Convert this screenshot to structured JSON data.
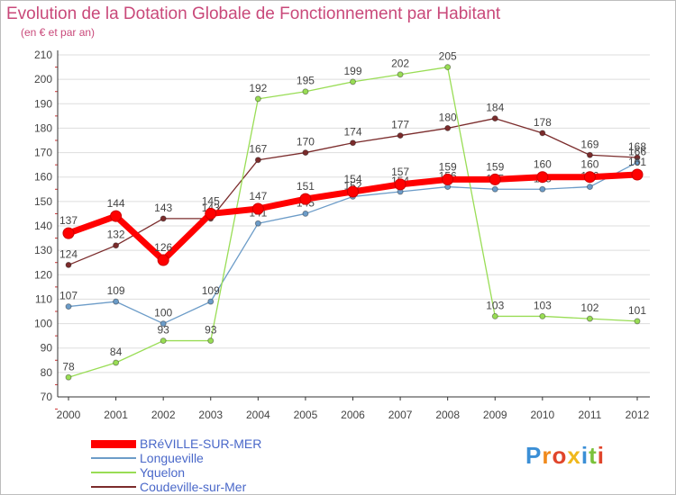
{
  "title": "Evolution de la Dotation Globale de Fonctionnement par Habitant",
  "subtitle": "(en € et par an)",
  "logo": {
    "text": "Proxiti"
  },
  "colors": {
    "main": "#ff0000",
    "longueville": "#6c9cc8",
    "yquelon": "#99dd55",
    "coudeville": "#7b2c2c",
    "axis": "#333333",
    "grid": "#dddddd",
    "title": "#c9497a"
  },
  "chart_data": {
    "type": "line",
    "title": "Evolution de la Dotation Globale de Fonctionnement par Habitant",
    "subtitle": "(en € et par an)",
    "xlabel": "",
    "ylabel": "",
    "ylim": [
      70,
      210
    ],
    "ytick_step": 10,
    "grid": true,
    "legend_position": "bottom-left",
    "categories": [
      "2000",
      "2001",
      "2002",
      "2003",
      "2004",
      "2005",
      "2006",
      "2007",
      "2008",
      "2009",
      "2010",
      "2011",
      "2012"
    ],
    "series": [
      {
        "name": "BRéVILLE-SUR-MER",
        "color": "#ff0000",
        "values": [
          137,
          144,
          126,
          145,
          147,
          151,
          154,
          157,
          159,
          159,
          160,
          160,
          161
        ]
      },
      {
        "name": "Longueville",
        "color": "#6c9cc8",
        "values": [
          107,
          109,
          100,
          109,
          141,
          145,
          152,
          154,
          156,
          155,
          155,
          156,
          166
        ]
      },
      {
        "name": "Yquelon",
        "color": "#99dd55",
        "values": [
          78,
          84,
          93,
          93,
          192,
          195,
          199,
          202,
          205,
          103,
          103,
          102,
          101
        ]
      },
      {
        "name": "Coudeville-sur-Mer",
        "color": "#7b2c2c",
        "values": [
          124,
          132,
          143,
          143,
          167,
          170,
          174,
          177,
          180,
          184,
          178,
          169,
          168
        ]
      }
    ]
  }
}
